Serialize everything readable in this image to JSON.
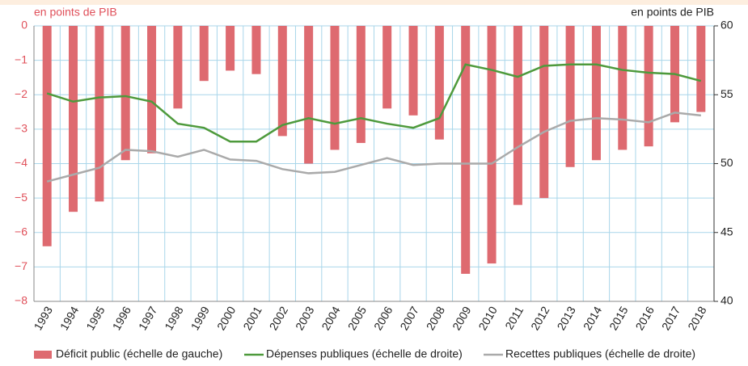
{
  "chart_data": {
    "type": "bar",
    "y_unit": "en points de PIB",
    "y2_unit": "en points de PIB",
    "categories": [
      "1993",
      "1994",
      "1995",
      "1996",
      "1997",
      "1998",
      "1999",
      "2000",
      "2001",
      "2002",
      "2003",
      "2004",
      "2005",
      "2006",
      "2007",
      "2008",
      "2009",
      "2010",
      "2011",
      "2012",
      "2013",
      "2014",
      "2015",
      "2016",
      "2017",
      "2018"
    ],
    "series": [
      {
        "name": "Déficit public (échelle de gauche)",
        "color": "#de6a70",
        "type": "bar",
        "values": [
          -6.4,
          -5.4,
          -5.1,
          -3.9,
          -3.7,
          -2.4,
          -1.6,
          -1.3,
          -1.4,
          -3.2,
          -4.0,
          -3.6,
          -3.4,
          -2.4,
          -2.6,
          -3.3,
          -7.2,
          -6.9,
          -5.2,
          -5.0,
          -4.1,
          -3.9,
          -3.6,
          -3.5,
          -2.8,
          -2.5
        ]
      },
      {
        "name": "Dépenses publiques (échelle de droite)",
        "color": "#4e9a3c",
        "type": "line",
        "axis": "y2",
        "values": [
          55.1,
          54.5,
          54.8,
          54.9,
          54.5,
          52.9,
          52.6,
          51.6,
          51.6,
          52.8,
          53.3,
          52.9,
          53.3,
          52.9,
          52.6,
          53.3,
          57.2,
          56.8,
          56.3,
          57.1,
          57.2,
          57.2,
          56.8,
          56.6,
          56.5,
          56.0
        ]
      },
      {
        "name": "Recettes publiques (échelle de droite)",
        "color": "#aaaaaa",
        "type": "line",
        "axis": "y2",
        "values": [
          48.7,
          49.2,
          49.7,
          51.0,
          50.9,
          50.5,
          51.0,
          50.3,
          50.2,
          49.6,
          49.3,
          49.4,
          49.9,
          50.4,
          49.9,
          50.0,
          50.0,
          50.0,
          51.2,
          52.3,
          53.1,
          53.3,
          53.2,
          53.0,
          53.7,
          53.5
        ]
      }
    ],
    "ylim": [
      -8,
      0
    ],
    "yticks": [
      0,
      {
        "value": -1,
        "label": "−1"
      },
      {
        "value": -2,
        "label": "−2"
      },
      {
        "value": -3,
        "label": "−3"
      },
      {
        "value": -4,
        "label": "−4"
      },
      {
        "value": -5,
        "label": "−5"
      },
      {
        "value": -6,
        "label": "−6"
      },
      {
        "value": -7,
        "label": "−7"
      },
      {
        "value": -8,
        "label": "−8"
      }
    ],
    "y2lim": [
      40,
      60
    ],
    "y2ticks": [
      40,
      45,
      50,
      55,
      60
    ],
    "grid": true
  }
}
